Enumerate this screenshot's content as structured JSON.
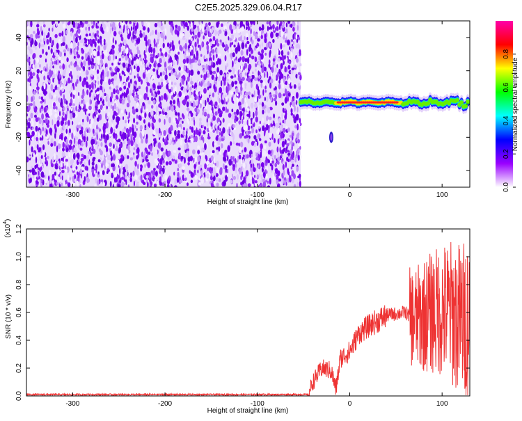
{
  "title": "C2E5.2025.329.06.04.R17",
  "chart_data": [
    {
      "type": "heatmap",
      "xlabel": "Height of straight line (km)",
      "ylabel": "Frequency (Hz)",
      "xlim": [
        -350,
        130
      ],
      "ylim": [
        -50,
        50
      ],
      "x_ticks": [
        -300,
        -200,
        -100,
        0,
        100
      ],
      "x_tick_labels": [
        "-300",
        "-200",
        "-100",
        "0",
        "100"
      ],
      "y_ticks": [
        -40,
        -20,
        0,
        20,
        40
      ],
      "y_tick_labels": [
        "-40",
        "-20",
        "0",
        "20",
        "40"
      ],
      "noise_region_end": -53,
      "signal_center_freq": 1,
      "colorbar": {
        "label": "Normalized spectral amplitude",
        "range": [
          0,
          1
        ],
        "ticks": [
          0.0,
          0.2,
          0.4,
          0.6,
          0.8
        ],
        "tick_labels": [
          "0.0",
          "0.2",
          "0.4",
          "0.6",
          "0.8"
        ],
        "colors": [
          "#ffffff",
          "#9900ff",
          "#0000ff",
          "#00ffff",
          "#00ff00",
          "#ffff00",
          "#ff0000",
          "#ff00aa"
        ]
      }
    },
    {
      "type": "line",
      "xlabel": "Height of straight line (km)",
      "ylabel": "SNR (10 * v/v)",
      "yscale_label": "(x10",
      "yscale_exp": "4",
      "xlim": [
        -350,
        130
      ],
      "ylim": [
        0,
        1.2
      ],
      "x_ticks": [
        -300,
        -200,
        -100,
        0,
        100
      ],
      "x_tick_labels": [
        "-300",
        "-200",
        "-100",
        "0",
        "100"
      ],
      "y_ticks": [
        0.0,
        0.2,
        0.4,
        0.6,
        0.8,
        1.0,
        1.2
      ],
      "y_tick_labels": [
        "0.0",
        "0.2",
        "0.4",
        "0.6",
        "0.8",
        "1.0",
        "1.2"
      ],
      "color": "#ee3333",
      "series": [
        {
          "name": "SNR",
          "x": [
            -350,
            -300,
            -200,
            -100,
            -45,
            -40,
            -30,
            -20,
            -15,
            -10,
            0,
            10,
            20,
            40,
            60,
            70,
            80,
            90,
            100,
            110,
            120,
            130
          ],
          "values": [
            0.01,
            0.01,
            0.01,
            0.01,
            0.01,
            0.1,
            0.2,
            0.18,
            0.05,
            0.27,
            0.32,
            0.45,
            0.5,
            0.58,
            0.6,
            0.55,
            0.58,
            0.6,
            0.62,
            0.6,
            0.55,
            0.55
          ]
        }
      ]
    }
  ]
}
